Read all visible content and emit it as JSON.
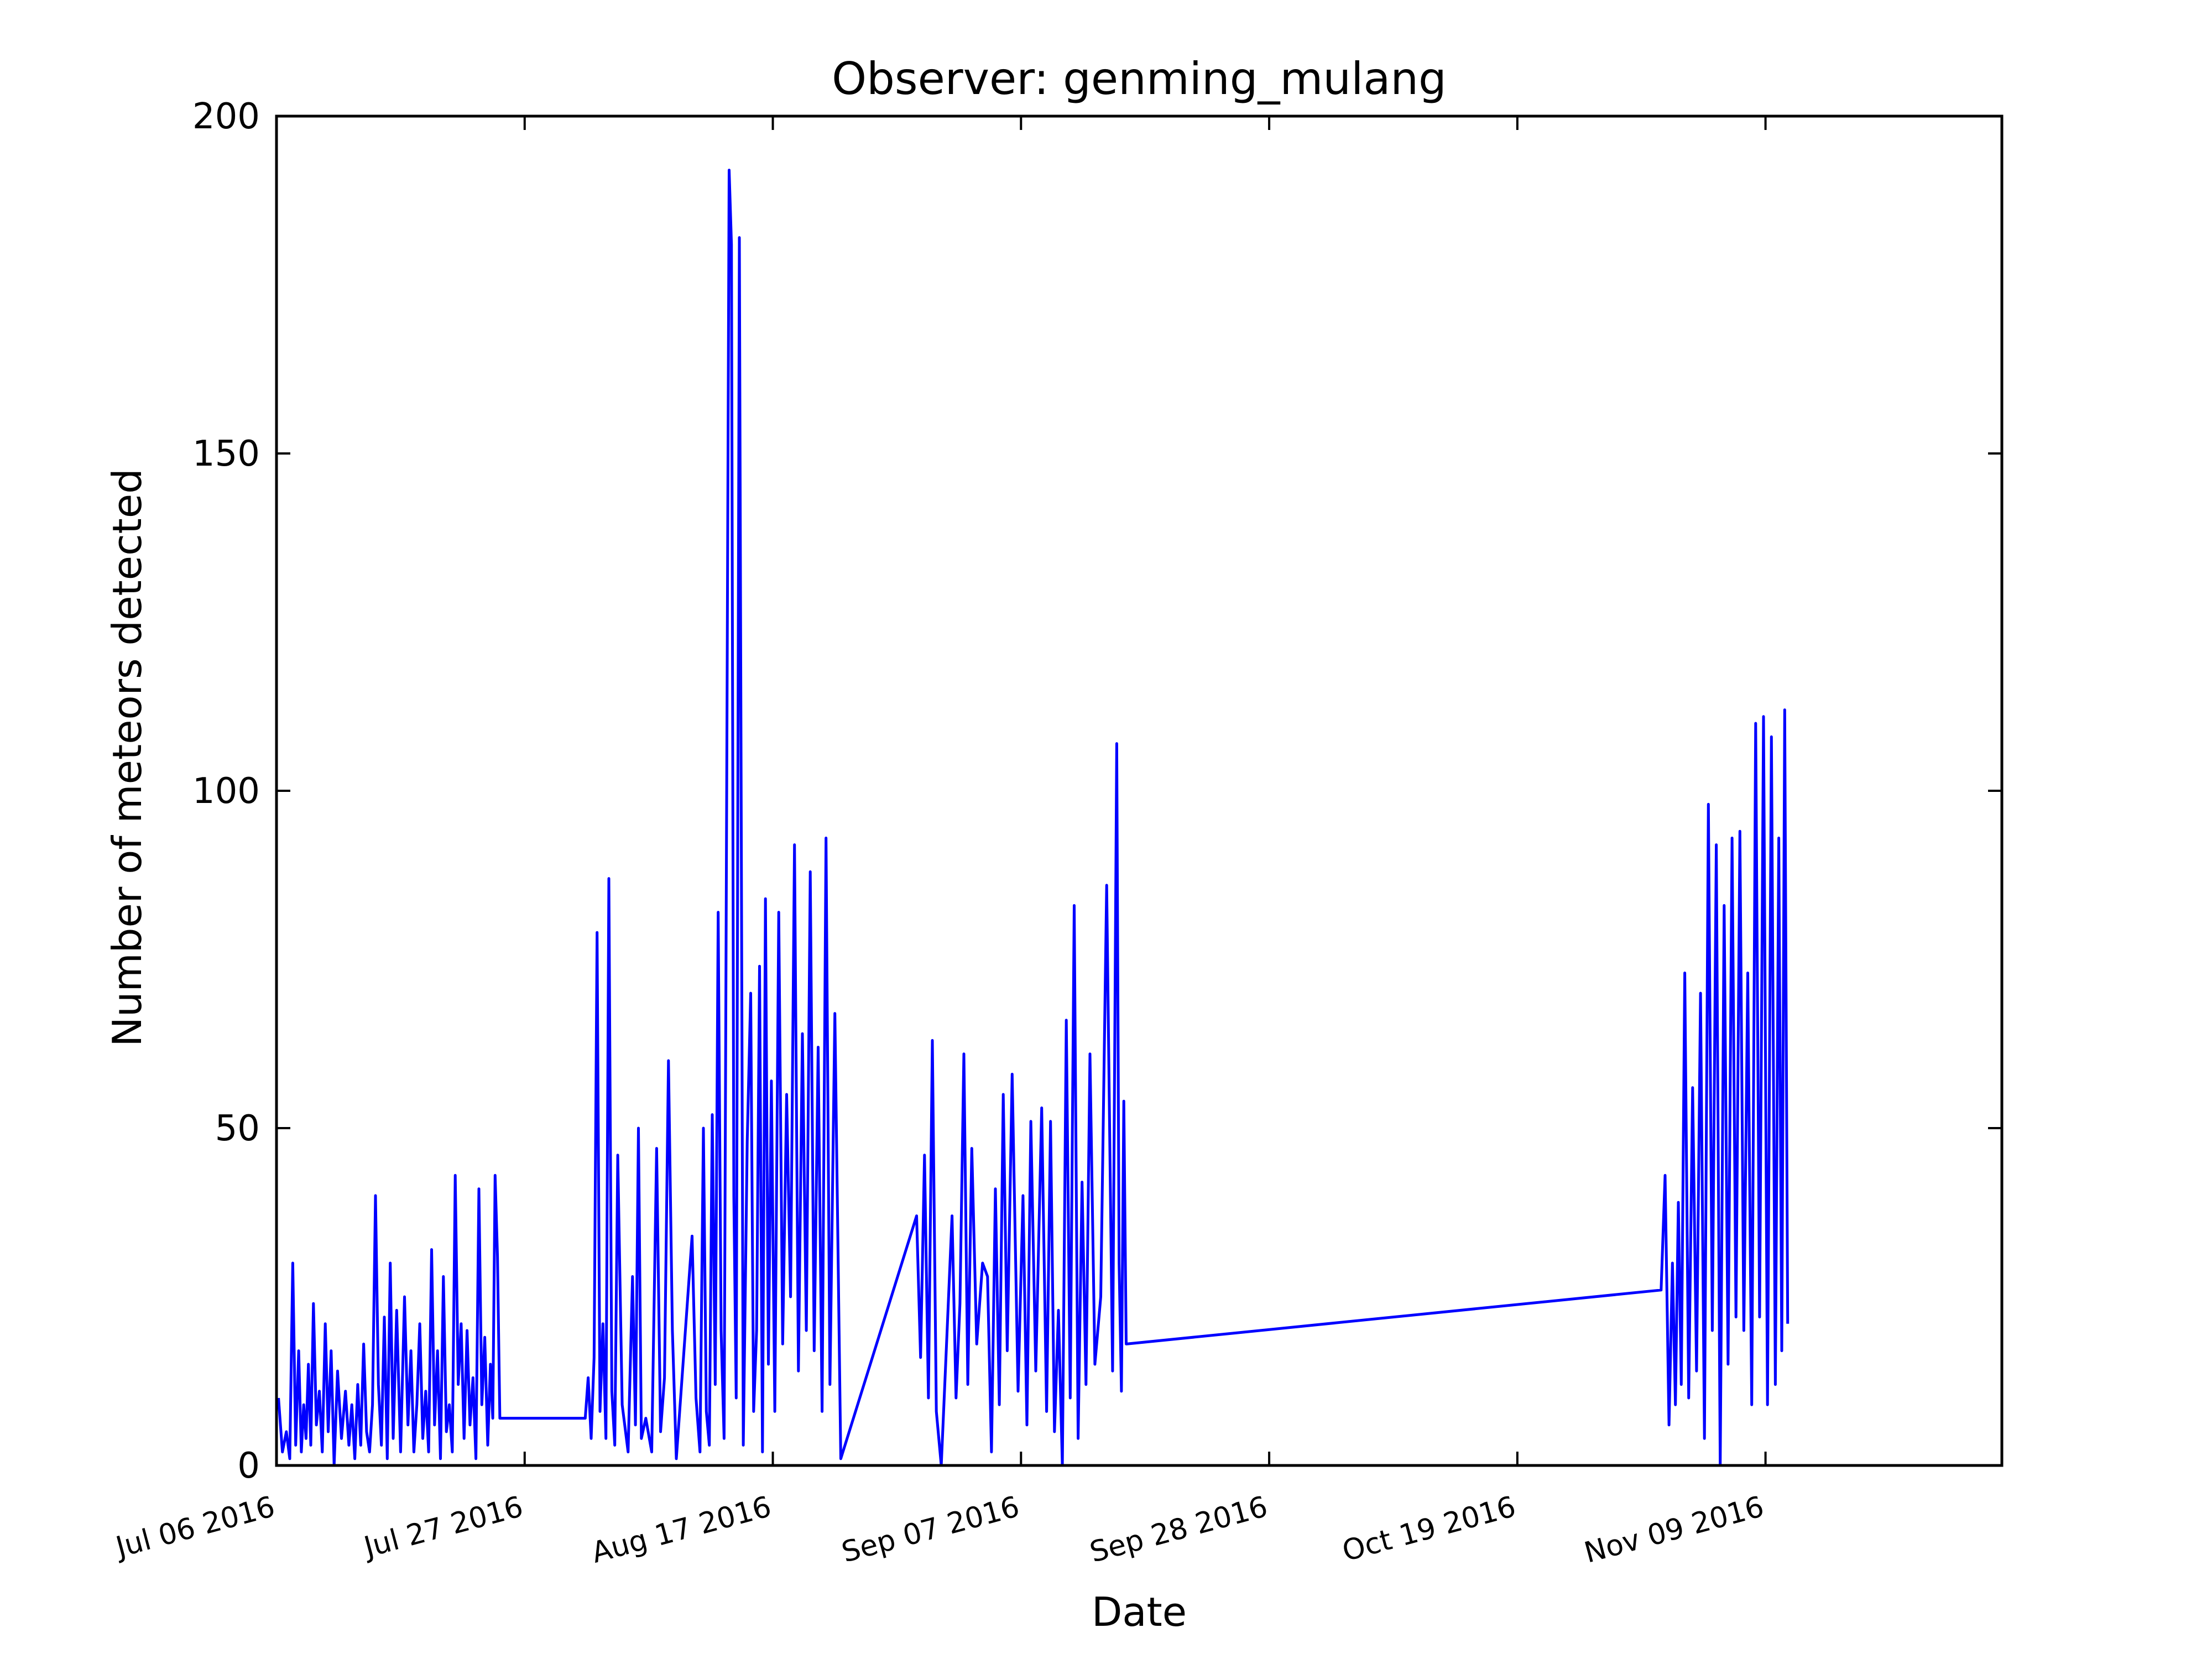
{
  "chart_data": {
    "type": "line",
    "title": "Observer: genming_mulang",
    "xlabel": "Date",
    "ylabel": "Number of meteors detected",
    "xlim": [
      "2016-07-06",
      "2016-11-29"
    ],
    "ylim": [
      0,
      200
    ],
    "yticks": [
      0,
      50,
      100,
      150,
      200
    ],
    "xticks": [
      {
        "date": "2016-07-06",
        "label": "Jul 06 2016"
      },
      {
        "date": "2016-07-27",
        "label": "Jul 27 2016"
      },
      {
        "date": "2016-08-17",
        "label": "Aug 17 2016"
      },
      {
        "date": "2016-09-07",
        "label": "Sep 07 2016"
      },
      {
        "date": "2016-09-28",
        "label": "Sep 28 2016"
      },
      {
        "date": "2016-10-19",
        "label": "Oct 19 2016"
      },
      {
        "date": "2016-11-09",
        "label": "Nov 09 2016"
      }
    ],
    "grid": false,
    "legend": "none",
    "series": [
      {
        "color": "#0000ff",
        "points": [
          [
            "2016-07-06",
            10
          ],
          [
            "2016-07-06",
            2
          ],
          [
            "2016-07-06",
            5
          ],
          [
            "2016-07-07",
            1
          ],
          [
            "2016-07-07",
            30
          ],
          [
            "2016-07-07",
            3
          ],
          [
            "2016-07-07",
            17
          ],
          [
            "2016-07-08",
            2
          ],
          [
            "2016-07-08",
            9
          ],
          [
            "2016-07-08",
            4
          ],
          [
            "2016-07-08",
            15
          ],
          [
            "2016-07-08",
            3
          ],
          [
            "2016-07-09",
            24
          ],
          [
            "2016-07-09",
            6
          ],
          [
            "2016-07-09",
            11
          ],
          [
            "2016-07-09",
            2
          ],
          [
            "2016-07-10",
            21
          ],
          [
            "2016-07-10",
            5
          ],
          [
            "2016-07-10",
            17
          ],
          [
            "2016-07-10",
            0
          ],
          [
            "2016-07-11",
            14
          ],
          [
            "2016-07-11",
            4
          ],
          [
            "2016-07-11",
            11
          ],
          [
            "2016-07-12",
            3
          ],
          [
            "2016-07-12",
            9
          ],
          [
            "2016-07-12",
            1
          ],
          [
            "2016-07-12",
            12
          ],
          [
            "2016-07-13",
            3
          ],
          [
            "2016-07-13",
            18
          ],
          [
            "2016-07-13",
            5
          ],
          [
            "2016-07-13",
            2
          ],
          [
            "2016-07-14",
            9
          ],
          [
            "2016-07-14",
            40
          ],
          [
            "2016-07-14",
            12
          ],
          [
            "2016-07-14",
            3
          ],
          [
            "2016-07-15",
            22
          ],
          [
            "2016-07-15",
            1
          ],
          [
            "2016-07-15",
            30
          ],
          [
            "2016-07-15",
            4
          ],
          [
            "2016-07-16",
            23
          ],
          [
            "2016-07-16",
            2
          ],
          [
            "2016-07-16",
            25
          ],
          [
            "2016-07-17",
            6
          ],
          [
            "2016-07-17",
            17
          ],
          [
            "2016-07-17",
            2
          ],
          [
            "2016-07-17",
            9
          ],
          [
            "2016-07-18",
            21
          ],
          [
            "2016-07-18",
            4
          ],
          [
            "2016-07-18",
            11
          ],
          [
            "2016-07-18",
            2
          ],
          [
            "2016-07-19",
            32
          ],
          [
            "2016-07-19",
            6
          ],
          [
            "2016-07-19",
            17
          ],
          [
            "2016-07-19",
            1
          ],
          [
            "2016-07-20",
            28
          ],
          [
            "2016-07-20",
            5
          ],
          [
            "2016-07-20",
            9
          ],
          [
            "2016-07-20",
            2
          ],
          [
            "2016-07-21",
            43
          ],
          [
            "2016-07-21",
            12
          ],
          [
            "2016-07-21",
            21
          ],
          [
            "2016-07-21",
            4
          ],
          [
            "2016-07-22",
            20
          ],
          [
            "2016-07-22",
            6
          ],
          [
            "2016-07-22",
            13
          ],
          [
            "2016-07-22",
            1
          ],
          [
            "2016-07-23",
            41
          ],
          [
            "2016-07-23",
            9
          ],
          [
            "2016-07-23",
            19
          ],
          [
            "2016-07-23",
            3
          ],
          [
            "2016-07-24",
            15
          ],
          [
            "2016-07-24",
            7
          ],
          [
            "2016-07-24",
            43
          ],
          [
            "2016-07-24",
            31
          ],
          [
            "2016-07-24",
            7
          ],
          [
            "2016-08-01",
            7
          ],
          [
            "2016-08-01",
            13
          ],
          [
            "2016-08-01",
            4
          ],
          [
            "2016-08-01",
            16
          ],
          [
            "2016-08-02",
            79
          ],
          [
            "2016-08-02",
            8
          ],
          [
            "2016-08-02",
            21
          ],
          [
            "2016-08-02",
            4
          ],
          [
            "2016-08-03",
            87
          ],
          [
            "2016-08-03",
            11
          ],
          [
            "2016-08-03",
            3
          ],
          [
            "2016-08-03",
            46
          ],
          [
            "2016-08-04",
            9
          ],
          [
            "2016-08-04",
            2
          ],
          [
            "2016-08-05",
            28
          ],
          [
            "2016-08-05",
            6
          ],
          [
            "2016-08-05",
            50
          ],
          [
            "2016-08-05",
            4
          ],
          [
            "2016-08-06",
            7
          ],
          [
            "2016-08-06",
            2
          ],
          [
            "2016-08-07",
            47
          ],
          [
            "2016-08-07",
            5
          ],
          [
            "2016-08-07",
            13
          ],
          [
            "2016-08-08",
            60
          ],
          [
            "2016-08-08",
            20
          ],
          [
            "2016-08-08",
            1
          ],
          [
            "2016-08-10",
            34
          ],
          [
            "2016-08-10",
            10
          ],
          [
            "2016-08-10",
            2
          ],
          [
            "2016-08-11",
            50
          ],
          [
            "2016-08-11",
            8
          ],
          [
            "2016-08-11",
            3
          ],
          [
            "2016-08-11",
            52
          ],
          [
            "2016-08-12",
            12
          ],
          [
            "2016-08-12",
            82
          ],
          [
            "2016-08-12",
            20
          ],
          [
            "2016-08-12",
            4
          ],
          [
            "2016-08-13",
            102
          ],
          [
            "2016-08-13",
            192
          ],
          [
            "2016-08-13",
            181
          ],
          [
            "2016-08-13",
            40
          ],
          [
            "2016-08-13",
            10
          ],
          [
            "2016-08-14",
            182
          ],
          [
            "2016-08-14",
            3
          ],
          [
            "2016-08-14",
            48
          ],
          [
            "2016-08-15",
            70
          ],
          [
            "2016-08-15",
            8
          ],
          [
            "2016-08-15",
            20
          ],
          [
            "2016-08-15",
            74
          ],
          [
            "2016-08-16",
            2
          ],
          [
            "2016-08-16",
            84
          ],
          [
            "2016-08-16",
            15
          ],
          [
            "2016-08-16",
            57
          ],
          [
            "2016-08-17",
            8
          ],
          [
            "2016-08-17",
            82
          ],
          [
            "2016-08-17",
            18
          ],
          [
            "2016-08-18",
            55
          ],
          [
            "2016-08-18",
            25
          ],
          [
            "2016-08-18",
            92
          ],
          [
            "2016-08-19",
            14
          ],
          [
            "2016-08-19",
            64
          ],
          [
            "2016-08-19",
            20
          ],
          [
            "2016-08-20",
            88
          ],
          [
            "2016-08-20",
            17
          ],
          [
            "2016-08-20",
            62
          ],
          [
            "2016-08-21",
            8
          ],
          [
            "2016-08-21",
            93
          ],
          [
            "2016-08-21",
            12
          ],
          [
            "2016-08-22",
            67
          ],
          [
            "2016-08-22",
            1
          ],
          [
            "2016-08-29",
            37
          ],
          [
            "2016-08-29",
            16
          ],
          [
            "2016-08-29",
            46
          ],
          [
            "2016-08-30",
            10
          ],
          [
            "2016-08-30",
            63
          ],
          [
            "2016-08-30",
            8
          ],
          [
            "2016-08-31",
            0
          ],
          [
            "2016-08-31",
            20
          ],
          [
            "2016-09-01",
            37
          ],
          [
            "2016-09-01",
            10
          ],
          [
            "2016-09-01",
            24
          ],
          [
            "2016-09-02",
            61
          ],
          [
            "2016-09-02",
            12
          ],
          [
            "2016-09-02",
            47
          ],
          [
            "2016-09-03",
            18
          ],
          [
            "2016-09-03",
            30
          ],
          [
            "2016-09-04",
            28
          ],
          [
            "2016-09-04",
            2
          ],
          [
            "2016-09-04",
            41
          ],
          [
            "2016-09-05",
            9
          ],
          [
            "2016-09-05",
            55
          ],
          [
            "2016-09-05",
            17
          ],
          [
            "2016-09-06",
            58
          ],
          [
            "2016-09-06",
            11
          ],
          [
            "2016-09-07",
            40
          ],
          [
            "2016-09-07",
            6
          ],
          [
            "2016-09-07",
            51
          ],
          [
            "2016-09-08",
            14
          ],
          [
            "2016-09-08",
            53
          ],
          [
            "2016-09-09",
            8
          ],
          [
            "2016-09-09",
            51
          ],
          [
            "2016-09-09",
            5
          ],
          [
            "2016-09-10",
            23
          ],
          [
            "2016-09-10",
            0
          ],
          [
            "2016-09-10",
            66
          ],
          [
            "2016-09-11",
            10
          ],
          [
            "2016-09-11",
            83
          ],
          [
            "2016-09-11",
            4
          ],
          [
            "2016-09-12",
            42
          ],
          [
            "2016-09-12",
            12
          ],
          [
            "2016-09-12",
            61
          ],
          [
            "2016-09-13",
            15
          ],
          [
            "2016-09-13",
            25
          ],
          [
            "2016-09-14",
            86
          ],
          [
            "2016-09-14",
            14
          ],
          [
            "2016-09-15",
            107
          ],
          [
            "2016-09-15",
            30
          ],
          [
            "2016-09-15",
            11
          ],
          [
            "2016-09-15",
            54
          ],
          [
            "2016-09-15",
            18
          ],
          [
            "2016-10-31",
            26
          ],
          [
            "2016-10-31",
            43
          ],
          [
            "2016-10-31",
            6
          ],
          [
            "2016-11-01",
            30
          ],
          [
            "2016-11-01",
            9
          ],
          [
            "2016-11-01",
            39
          ],
          [
            "2016-11-01",
            12
          ],
          [
            "2016-11-02",
            73
          ],
          [
            "2016-11-02",
            10
          ],
          [
            "2016-11-02",
            56
          ],
          [
            "2016-11-03",
            14
          ],
          [
            "2016-11-03",
            70
          ],
          [
            "2016-11-03",
            4
          ],
          [
            "2016-11-04",
            98
          ],
          [
            "2016-11-04",
            20
          ],
          [
            "2016-11-04",
            92
          ],
          [
            "2016-11-05",
            0
          ],
          [
            "2016-11-05",
            83
          ],
          [
            "2016-11-05",
            15
          ],
          [
            "2016-11-06",
            93
          ],
          [
            "2016-11-06",
            22
          ],
          [
            "2016-11-06",
            94
          ],
          [
            "2016-11-07",
            20
          ],
          [
            "2016-11-07",
            73
          ],
          [
            "2016-11-07",
            9
          ],
          [
            "2016-11-08",
            110
          ],
          [
            "2016-11-08",
            22
          ],
          [
            "2016-11-08",
            111
          ],
          [
            "2016-11-09",
            9
          ],
          [
            "2016-11-09",
            108
          ],
          [
            "2016-11-09",
            12
          ],
          [
            "2016-11-10",
            93
          ],
          [
            "2016-11-10",
            17
          ],
          [
            "2016-11-10",
            112
          ],
          [
            "2016-11-10",
            21
          ]
        ]
      }
    ]
  }
}
